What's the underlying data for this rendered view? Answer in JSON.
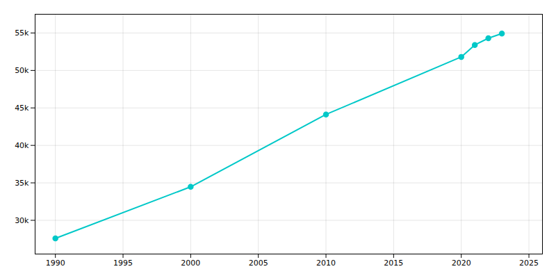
{
  "chart_data": {
    "type": "line",
    "x": [
      1990,
      2000,
      2010,
      2020,
      2021,
      2022,
      2023
    ],
    "values": [
      27591,
      34469,
      44125,
      51807,
      53400,
      54300,
      54930
    ],
    "color": "#00c8c8",
    "marker": "circle",
    "xlim": [
      1988.5,
      2026
    ],
    "ylim": [
      25500,
      57500
    ],
    "xticks": [
      1990,
      1995,
      2000,
      2005,
      2010,
      2015,
      2020,
      2025
    ],
    "yticks": [
      {
        "value": 30000,
        "label": "30k"
      },
      {
        "value": 35000,
        "label": "35k"
      },
      {
        "value": 40000,
        "label": "40k"
      },
      {
        "value": 45000,
        "label": "45k"
      },
      {
        "value": 50000,
        "label": "50k"
      },
      {
        "value": 55000,
        "label": "55k"
      }
    ],
    "grid": true
  }
}
